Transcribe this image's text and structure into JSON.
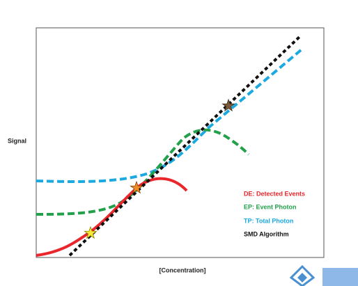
{
  "axes": {
    "y_label": "Signal",
    "x_label": "[Concentration]"
  },
  "legend": [
    {
      "label": "DE: Detected Events"
    },
    {
      "label": "EP: Event Photon"
    },
    {
      "label": "TP: Total Photon"
    },
    {
      "label": "SMD Algorithm"
    }
  ]
}
